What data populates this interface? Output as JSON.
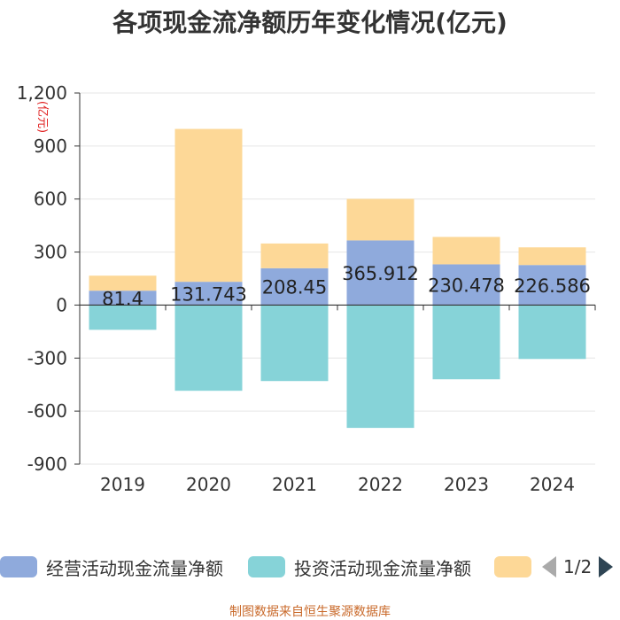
{
  "title": "各项现金流净额历年变化情况(亿元)",
  "footer": "制图数据来自恒生聚源数据库",
  "legend": {
    "items": [
      {
        "label": "经营活动现金流量净额",
        "color": "#8faadc"
      },
      {
        "label": "投资活动现金流量净额",
        "color": "#86d3d8"
      },
      {
        "label": "",
        "color": "#fdd897"
      }
    ],
    "page": "1/2"
  },
  "chart_data": {
    "type": "bar",
    "stacked": true,
    "title": "各项现金流净额历年变化情况(亿元)",
    "ylabel": "(亿元)",
    "ylim": [
      -900,
      1200
    ],
    "yticks": [
      -900,
      -600,
      -300,
      0,
      300,
      600,
      900,
      1200
    ],
    "ytick_labels": [
      "-900",
      "-600",
      "-300",
      "0",
      "300",
      "600",
      "900",
      "1,200"
    ],
    "categories": [
      "2019",
      "2020",
      "2021",
      "2022",
      "2023",
      "2024"
    ],
    "series": [
      {
        "name": "经营活动现金流量净额",
        "color": "#8faadc",
        "values": [
          81.4,
          131.743,
          208.45,
          365.912,
          230.478,
          226.586
        ],
        "labels": [
          "81.4",
          "131.743",
          "208.45",
          "365.912",
          "230.478",
          "226.586"
        ]
      },
      {
        "name": "投资活动现金流量净额",
        "color": "#86d3d8",
        "values": [
          -140,
          -485,
          -430,
          -695,
          -420,
          -305
        ]
      },
      {
        "name": "",
        "color": "#fdd897",
        "values": [
          85,
          865,
          140,
          235,
          155,
          100
        ]
      }
    ]
  }
}
